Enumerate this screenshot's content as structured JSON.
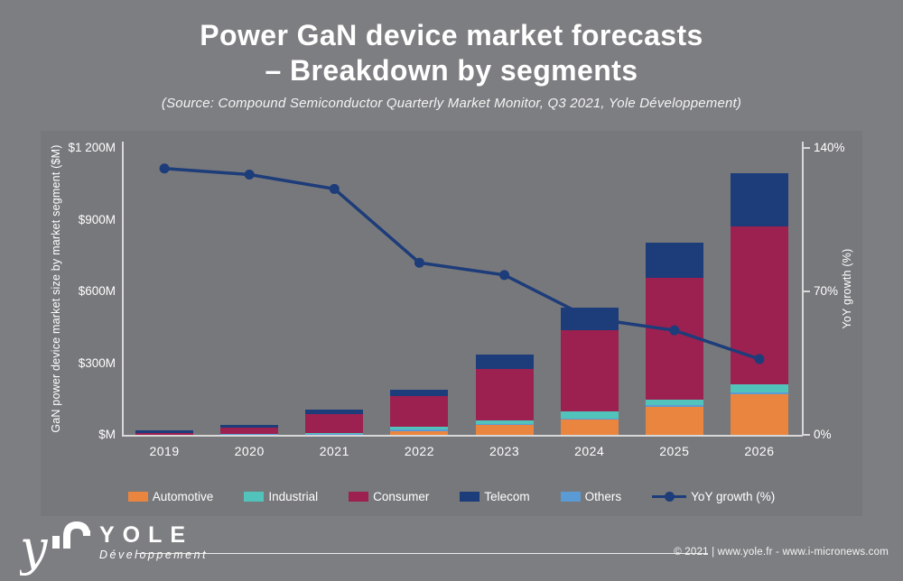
{
  "header": {
    "title": "Power GaN device market forecasts\n– Breakdown by segments",
    "subtitle": "(Source: Compound Semiconductor Quarterly Market Monitor, Q3 2021, Yole Développement)"
  },
  "chart_data": {
    "type": "bar",
    "stacked": true,
    "categories": [
      "2019",
      "2020",
      "2021",
      "2022",
      "2023",
      "2024",
      "2025",
      "2026"
    ],
    "series": [
      {
        "name": "Automotive",
        "color": "#ea8540",
        "values": [
          0,
          1,
          1,
          17,
          41,
          64,
          117,
          170
        ]
      },
      {
        "name": "Others",
        "color": "#5b9bd5",
        "values": [
          0,
          1,
          1,
          6,
          4,
          4,
          7,
          8
        ]
      },
      {
        "name": "Industrial",
        "color": "#52c3bb",
        "values": [
          1,
          2,
          7,
          10,
          15,
          30,
          23,
          34
        ]
      },
      {
        "name": "Consumer",
        "color": "#9c2150",
        "values": [
          8,
          26,
          79,
          128,
          216,
          340,
          510,
          660
        ]
      },
      {
        "name": "Telecom",
        "color": "#1d3c7a",
        "values": [
          10,
          13,
          18,
          29,
          60,
          94,
          147,
          223
        ]
      }
    ],
    "line_series": {
      "name": "YoY growth (%)",
      "color": "#1d3c7a",
      "values": [
        130,
        127,
        120,
        84,
        78,
        57,
        51,
        37
      ]
    },
    "left_axis": {
      "label": "GaN power device market size by market segment ($M)",
      "ticks": [
        "$1 200M",
        "$900M",
        "$600M",
        "$300M",
        "$M"
      ],
      "min": 0,
      "max": 1200
    },
    "right_axis": {
      "label": "YoY growth (%)",
      "ticks": [
        "140%",
        "70%",
        "0%"
      ],
      "min": 0,
      "max": 140
    },
    "legend_position": "bottom",
    "grid": false
  },
  "legend": {
    "items": [
      {
        "label": "Automotive",
        "color": "#ea8540",
        "type": "box"
      },
      {
        "label": "Industrial",
        "color": "#52c3bb",
        "type": "box"
      },
      {
        "label": "Consumer",
        "color": "#9c2150",
        "type": "box"
      },
      {
        "label": "Telecom",
        "color": "#1d3c7a",
        "type": "box"
      },
      {
        "label": "Others",
        "color": "#5b9bd5",
        "type": "box"
      },
      {
        "label": "YoY growth (%)",
        "color": "#1d3c7a",
        "type": "line"
      }
    ]
  },
  "footer": {
    "logo_word": "YOLE",
    "logo_sub": "Développement",
    "copyright": "© 2021 | www.yole.fr - www.i-micronews.com"
  }
}
